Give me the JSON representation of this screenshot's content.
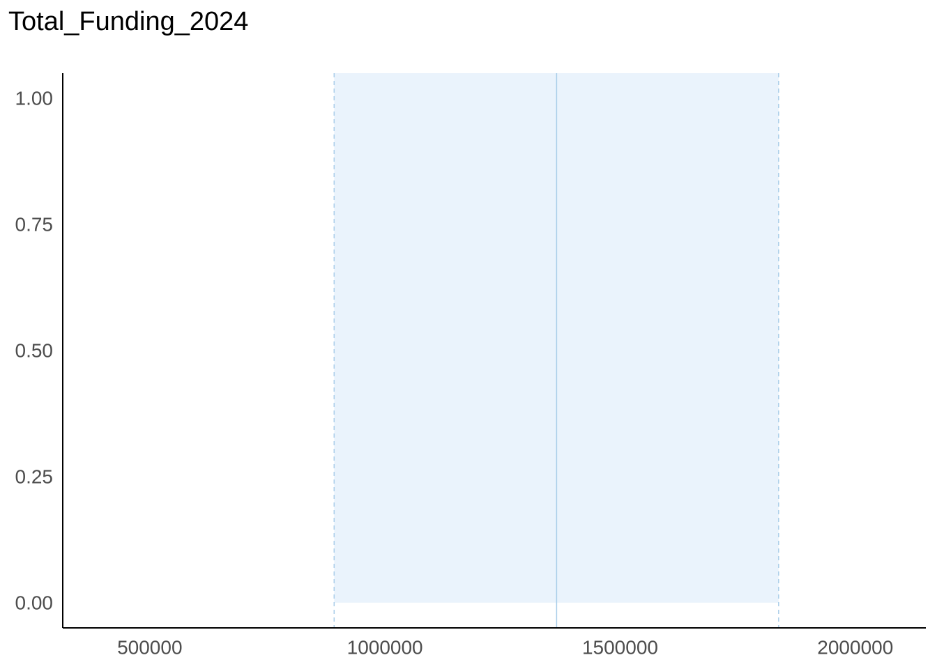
{
  "chart_data": {
    "type": "area",
    "title": "Total_Funding_2024",
    "xlabel": "",
    "ylabel": "",
    "xlim": [
      315000,
      2150000
    ],
    "ylim": [
      -0.05,
      1.05
    ],
    "x_ticks": [
      500000,
      1000000,
      1500000,
      2000000
    ],
    "x_tick_labels": [
      "500000",
      "1000000",
      "1500000",
      "2000000"
    ],
    "y_ticks": [
      0,
      0.25,
      0.5,
      0.75,
      1
    ],
    "y_tick_labels": [
      "0.00",
      "0.25",
      "0.50",
      "0.75",
      "1.00"
    ],
    "interval": {
      "low": 892000,
      "high": 1837000,
      "center": 1365000,
      "y_bottom": 0,
      "y_top": 1.05
    },
    "grid": false,
    "legend": "none",
    "colors": {
      "band_fill": "#eaf3fc",
      "center_line": "#a9cde9",
      "bound_line": "#a9cde9",
      "axis_line": "#000000",
      "tick_text": "#4d4d4d"
    }
  }
}
